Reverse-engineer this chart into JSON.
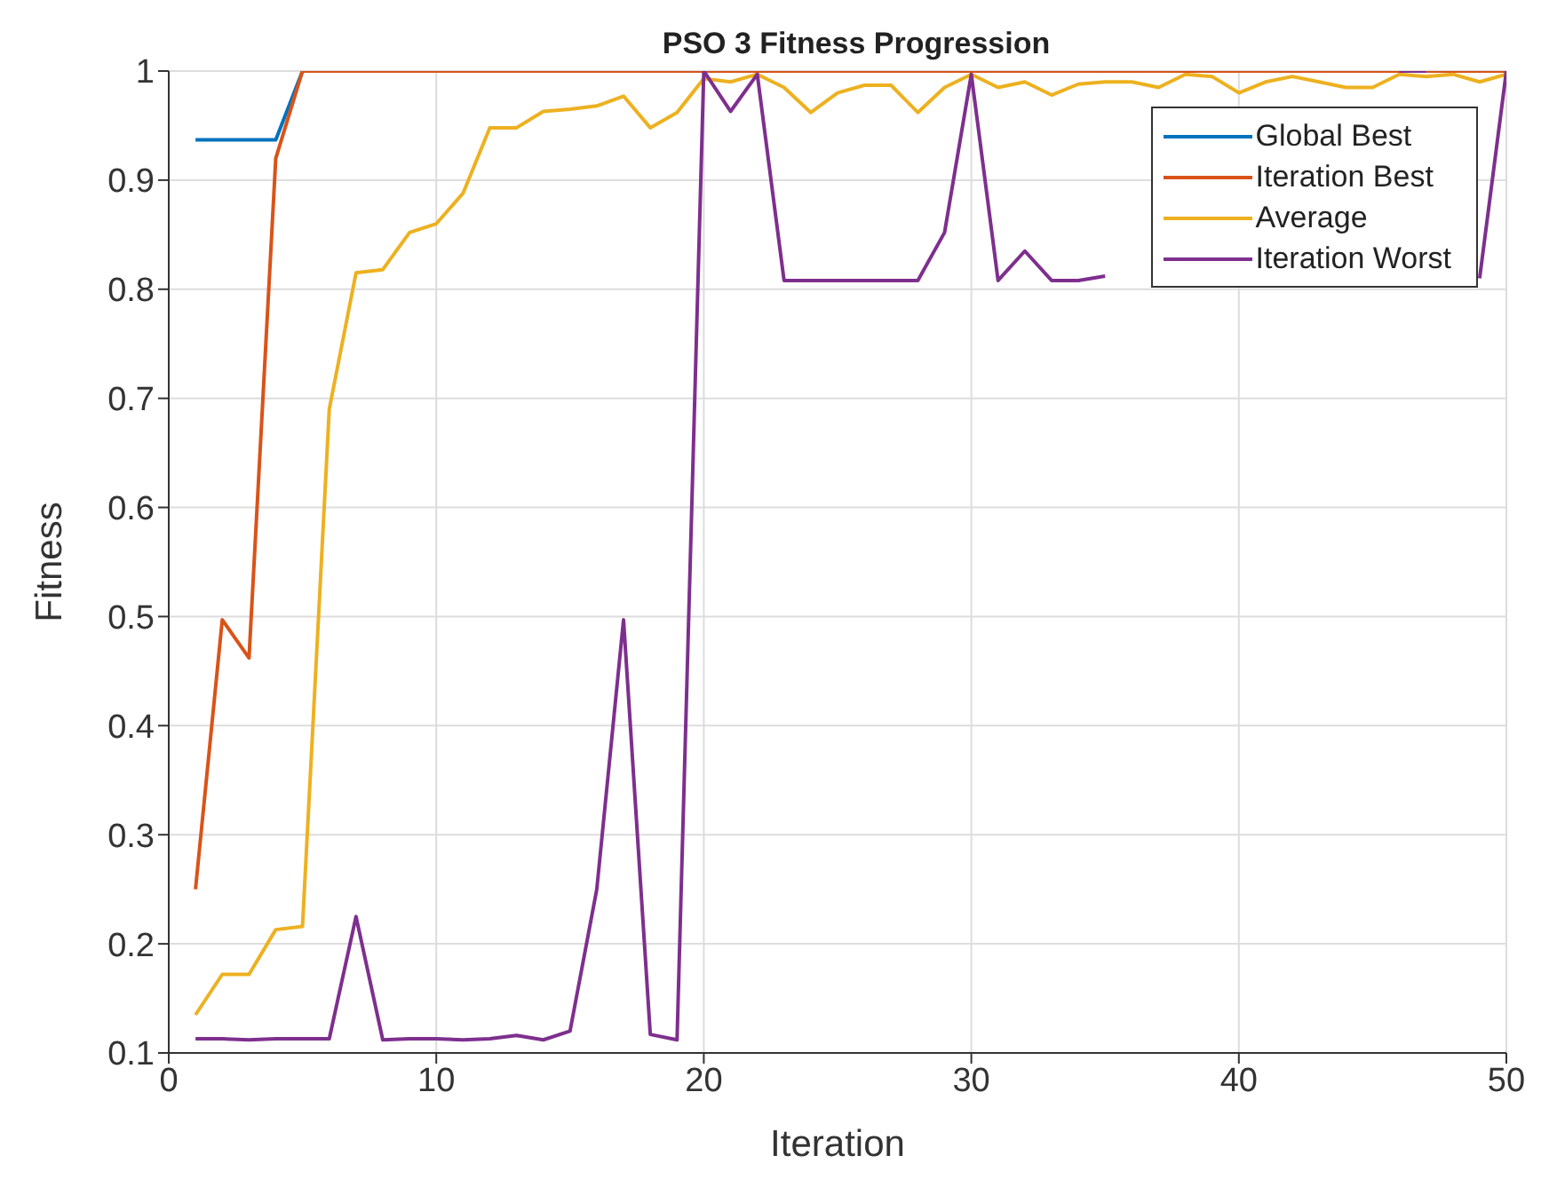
{
  "chart_data": {
    "type": "line",
    "title": "PSO 3 Fitness Progression",
    "xlabel": "Iteration",
    "ylabel": "Fitness",
    "x": [
      1,
      2,
      3,
      4,
      5,
      6,
      7,
      8,
      9,
      10,
      11,
      12,
      13,
      14,
      15,
      16,
      17,
      18,
      19,
      20,
      21,
      22,
      23,
      24,
      25,
      26,
      27,
      28,
      29,
      30,
      31,
      32,
      33,
      34,
      35,
      36,
      37,
      38,
      39,
      40,
      41,
      42,
      43,
      44,
      45,
      46,
      47,
      48,
      49,
      50
    ],
    "series": [
      {
        "name": "Global Best",
        "color": "#0072bd",
        "values": [
          0.937,
          0.937,
          0.937,
          0.937,
          1,
          null,
          null,
          null,
          null,
          null,
          null,
          null,
          null,
          null,
          null,
          null,
          null,
          null,
          null,
          null,
          null,
          null,
          null,
          null,
          null,
          null,
          null,
          null,
          null,
          null,
          null,
          null,
          null,
          null,
          null,
          null,
          null,
          null,
          null,
          null,
          null,
          null,
          null,
          null,
          null,
          null,
          null,
          null,
          null,
          null
        ]
      },
      {
        "name": "Iteration Best",
        "color": "#d95319",
        "values": [
          0.25,
          0.497,
          0.462,
          0.92,
          1,
          1,
          1,
          1,
          1,
          1,
          1,
          1,
          1,
          1,
          1,
          1,
          1,
          1,
          1,
          1,
          1,
          1,
          1,
          1,
          1,
          1,
          1,
          1,
          1,
          1,
          1,
          1,
          1,
          1,
          1,
          1,
          1,
          1,
          1,
          1,
          1,
          1,
          1,
          1,
          1,
          1,
          1,
          1,
          1,
          1
        ]
      },
      {
        "name": "Average",
        "color": "#edb120",
        "values": [
          0.135,
          0.172,
          0.172,
          0.213,
          0.216,
          0.69,
          0.815,
          0.818,
          0.852,
          0.86,
          0.888,
          0.948,
          0.948,
          0.963,
          0.965,
          0.968,
          0.977,
          0.948,
          0.962,
          0.993,
          0.99,
          0.997,
          0.985,
          0.962,
          0.98,
          0.987,
          0.987,
          0.962,
          0.985,
          0.997,
          0.985,
          0.99,
          0.978,
          0.988,
          0.99,
          0.99,
          0.985,
          0.997,
          0.995,
          0.98,
          0.99,
          0.995,
          0.99,
          0.985,
          0.985,
          0.997,
          0.995,
          0.997,
          0.99,
          0.997
        ]
      },
      {
        "name": "Iteration Worst",
        "color": "#7e2f8e",
        "values": [
          0.113,
          0.113,
          0.112,
          0.113,
          0.113,
          0.113,
          0.225,
          0.112,
          0.113,
          0.113,
          0.112,
          0.113,
          0.116,
          0.112,
          0.12,
          0.25,
          0.497,
          0.117,
          0.112,
          1,
          0.963,
          0.997,
          0.808,
          0.808,
          0.808,
          0.808,
          0.808,
          0.808,
          0.852,
          0.997,
          0.808,
          0.835,
          0.808,
          0.808,
          0.812,
          null,
          null,
          null,
          null,
          null,
          null,
          null,
          null,
          null,
          null,
          1,
          1,
          null,
          0.81,
          1
        ]
      }
    ],
    "xlim": [
      0,
      50
    ],
    "xticks": [
      0,
      10,
      20,
      30,
      40,
      50
    ],
    "ylim": [
      0.1,
      1
    ],
    "yticks": [
      0.1,
      0.2,
      0.3,
      0.4,
      0.5,
      0.6,
      0.7,
      0.8,
      0.9,
      1
    ],
    "grid": true,
    "legend": "top right",
    "marker": "none",
    "line_style": "solid"
  }
}
